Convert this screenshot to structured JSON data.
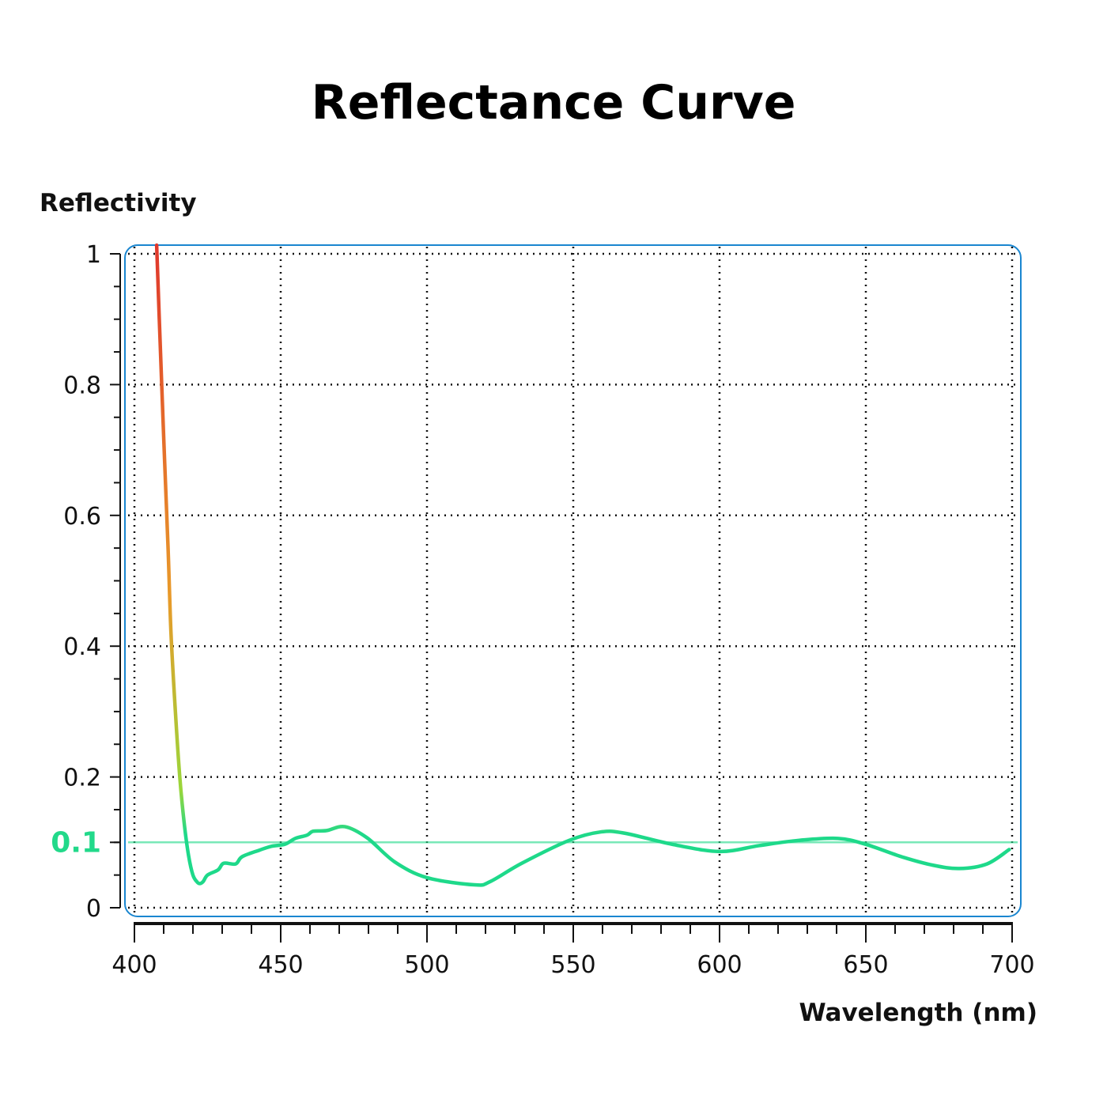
{
  "chart_data": {
    "type": "line",
    "title": "Reflectance Curve",
    "xlabel": "Wavelength (nm)",
    "ylabel": "Reflectivity",
    "xlim": [
      400,
      700
    ],
    "ylim": [
      0,
      1
    ],
    "x_ticks": [
      400,
      450,
      500,
      550,
      600,
      650,
      700
    ],
    "x_tick_labels": [
      "400",
      "450",
      "500",
      "550",
      "600",
      "650",
      "700"
    ],
    "y_ticks": [
      0,
      0.2,
      0.4,
      0.6,
      0.8,
      1
    ],
    "y_tick_labels": [
      "0",
      "0.2",
      "0.4",
      "0.6",
      "0.8",
      "1"
    ],
    "highlight_line": {
      "value": 0.1,
      "label": "0.1",
      "color": "#22d98a"
    },
    "grid": true,
    "grid_style": "dotted",
    "frame_color": "#1a86d0",
    "curve_colors": {
      "high": "#e0382c",
      "mid": "#e89a2a",
      "low": "#1ed98a"
    },
    "series": [
      {
        "x": [
          407.6,
          408.5,
          410,
          411.5,
          412.5,
          414,
          415.5,
          417,
          418.5,
          420,
          421.5,
          422.4,
          423.5,
          425,
          428.6,
          430.5,
          434.6,
          436.8,
          442.7,
          446.8,
          451.4,
          455,
          459,
          461.1,
          465.7,
          471.9,
          479.5,
          489,
          500,
          516.2,
          521.6,
          532.4,
          548.6,
          559.5,
          567.6,
          583.8,
          600,
          613.5,
          627,
          640.5,
          650,
          662.2,
          673,
          682,
          691.4,
          699
        ],
        "y": [
          1.0,
          0.9,
          0.72,
          0.55,
          0.42,
          0.3,
          0.2,
          0.13,
          0.08,
          0.05,
          0.039,
          0.037,
          0.04,
          0.05,
          0.058,
          0.068,
          0.067,
          0.078,
          0.088,
          0.094,
          0.097,
          0.106,
          0.111,
          0.117,
          0.118,
          0.124,
          0.107,
          0.07,
          0.046,
          0.035,
          0.04,
          0.068,
          0.103,
          0.116,
          0.114,
          0.097,
          0.086,
          0.095,
          0.103,
          0.106,
          0.097,
          0.078,
          0.065,
          0.06,
          0.067,
          0.089
        ]
      }
    ]
  }
}
